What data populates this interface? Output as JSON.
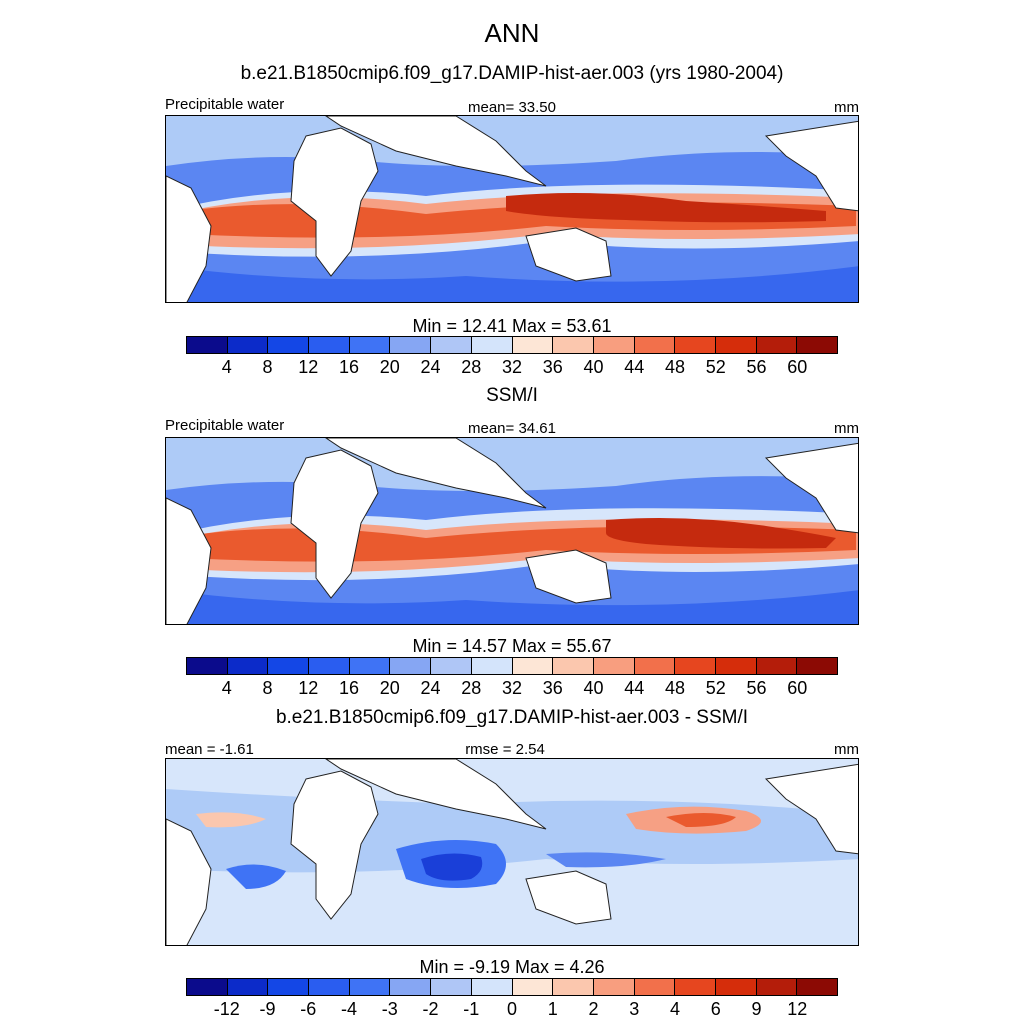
{
  "title": "ANN",
  "panels": [
    {
      "heading": "b.e21.B1850cmip6.f09_g17.DAMIP-hist-aer.003 (yrs 1980-2004)",
      "left_label": "Precipitable water",
      "center_label": "mean=  33.50",
      "right_label": "mm",
      "minmax": "Min =  12.41 Max =  53.61",
      "colorbar": {
        "ticks": [
          "4",
          "8",
          "12",
          "16",
          "20",
          "24",
          "28",
          "32",
          "36",
          "40",
          "44",
          "48",
          "52",
          "56",
          "60"
        ],
        "colors": [
          "#0b0b8c",
          "#0c2bc9",
          "#1447e6",
          "#2a5df0",
          "#3f73f5",
          "#86a6f3",
          "#afc6f6",
          "#d4e4fb",
          "#fde6d6",
          "#fbc7ae",
          "#f89e7f",
          "#f2704b",
          "#e6461f",
          "#d52d0b",
          "#b41d0a",
          "#8c0a04"
        ]
      }
    },
    {
      "heading": "SSM/I",
      "left_label": "Precipitable water",
      "center_label": "mean=  34.61",
      "right_label": "mm",
      "minmax": "Min =  14.57 Max =  55.67",
      "colorbar": {
        "ticks": [
          "4",
          "8",
          "12",
          "16",
          "20",
          "24",
          "28",
          "32",
          "36",
          "40",
          "44",
          "48",
          "52",
          "56",
          "60"
        ],
        "colors": [
          "#0b0b8c",
          "#0c2bc9",
          "#1447e6",
          "#2a5df0",
          "#3f73f5",
          "#86a6f3",
          "#afc6f6",
          "#d4e4fb",
          "#fde6d6",
          "#fbc7ae",
          "#f89e7f",
          "#f2704b",
          "#e6461f",
          "#d52d0b",
          "#b41d0a",
          "#8c0a04"
        ]
      }
    },
    {
      "heading": "b.e21.B1850cmip6.f09_g17.DAMIP-hist-aer.003 - SSM/I",
      "left_label": "mean =  -1.61",
      "center_label": "rmse =   2.54",
      "right_label": "mm",
      "minmax": "Min =  -9.19 Max =   4.26",
      "colorbar": {
        "ticks": [
          "-12",
          "-9",
          "-6",
          "-4",
          "-3",
          "-2",
          "-1",
          "0",
          "1",
          "2",
          "3",
          "4",
          "6",
          "9",
          "12"
        ],
        "colors": [
          "#0b0b8c",
          "#0c2bc9",
          "#1447e6",
          "#2a5df0",
          "#3f73f5",
          "#86a6f3",
          "#afc6f6",
          "#d4e4fb",
          "#fde6d6",
          "#fbc7ae",
          "#f89e7f",
          "#f2704b",
          "#e6461f",
          "#d52d0b",
          "#b41d0a",
          "#8c0a04"
        ]
      }
    }
  ],
  "chart_data": [
    {
      "type": "heatmap",
      "title": "ANN",
      "subtitle": "b.e21.B1850cmip6.f09_g17.DAMIP-hist-aer.003 (yrs 1980-2004)",
      "variable": "Precipitable water",
      "units": "mm",
      "mean": 33.5,
      "min": 12.41,
      "max": 53.61,
      "levels": [
        4,
        8,
        12,
        16,
        20,
        24,
        28,
        32,
        36,
        40,
        44,
        48,
        52,
        56,
        60
      ]
    },
    {
      "type": "heatmap",
      "subtitle": "SSM/I",
      "variable": "Precipitable water",
      "units": "mm",
      "mean": 34.61,
      "min": 14.57,
      "max": 55.67,
      "levels": [
        4,
        8,
        12,
        16,
        20,
        24,
        28,
        32,
        36,
        40,
        44,
        48,
        52,
        56,
        60
      ]
    },
    {
      "type": "heatmap",
      "subtitle": "b.e21.B1850cmip6.f09_g17.DAMIP-hist-aer.003 - SSM/I",
      "units": "mm",
      "mean": -1.61,
      "rmse": 2.54,
      "min": -9.19,
      "max": 4.26,
      "levels": [
        -12,
        -9,
        -6,
        -4,
        -3,
        -2,
        -1,
        0,
        1,
        2,
        3,
        4,
        6,
        9,
        12
      ]
    }
  ]
}
